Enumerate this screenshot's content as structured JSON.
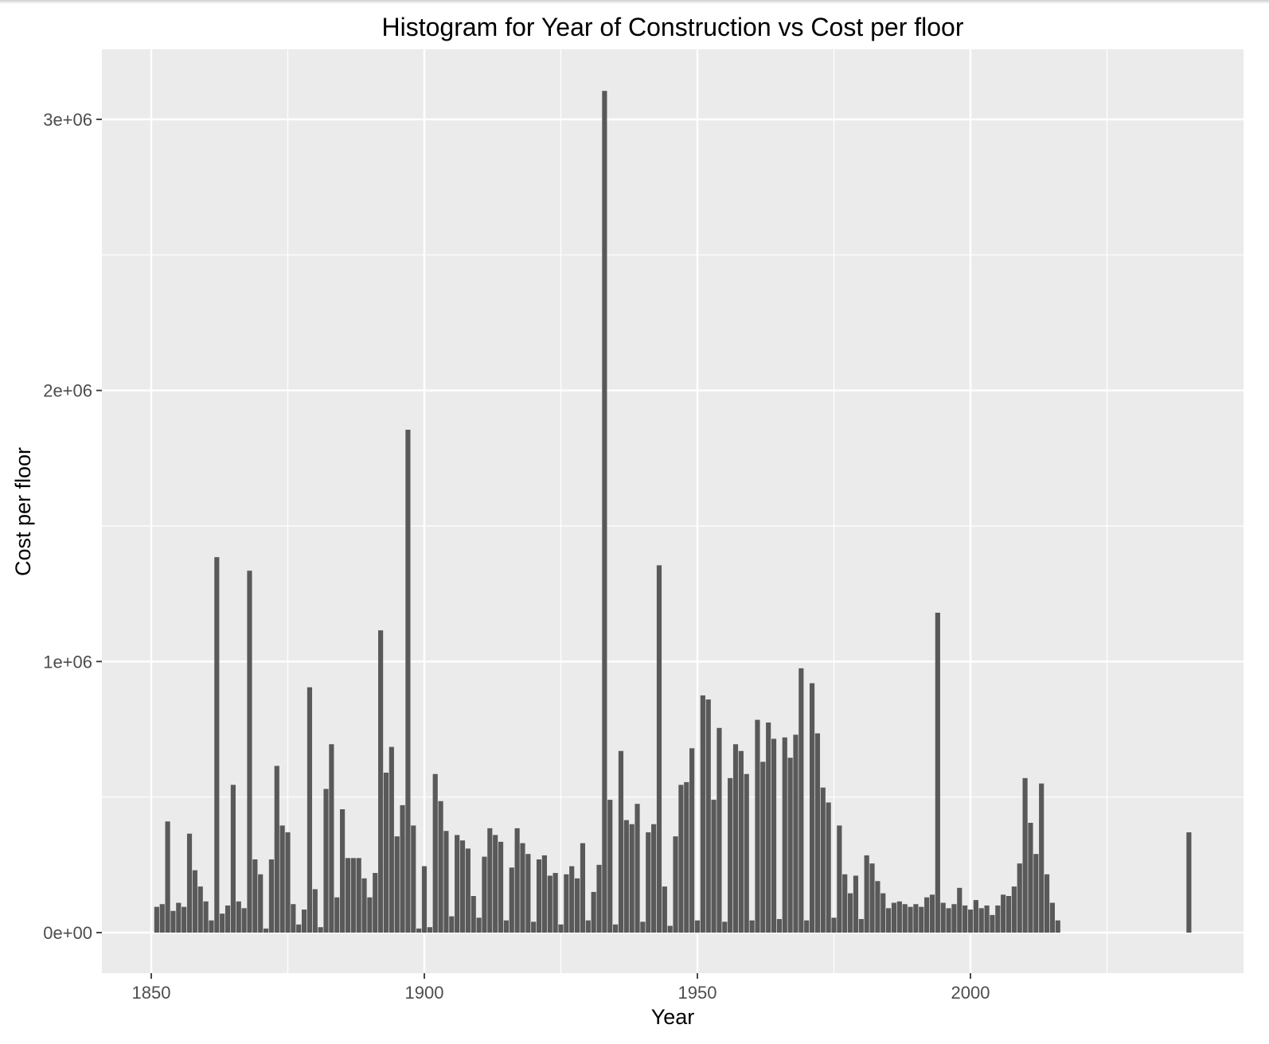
{
  "chart_data": {
    "type": "bar",
    "title": "Histogram for Year of Construction vs Cost per floor",
    "xlabel": "Year",
    "ylabel": "Cost per floor",
    "xlim": [
      1841.5,
      2048.5
    ],
    "ylim": [
      -160000,
      3250000
    ],
    "x_ticks": [
      1850,
      1900,
      1950,
      2000
    ],
    "x_tick_labels": [
      "1850",
      "1900",
      "1950",
      "2000"
    ],
    "y_ticks": [
      0,
      1000000,
      2000000,
      3000000
    ],
    "y_tick_labels": [
      "0e+00",
      "1e+06",
      "2e+06",
      "3e+06"
    ],
    "grid": true,
    "legend": "none",
    "colors": {
      "bar": "#595959",
      "panel": "#ebebeb",
      "grid": "#ffffff",
      "text": "#000000",
      "tick_text": "#4d4d4d"
    },
    "x": [
      1851,
      1852,
      1853,
      1854,
      1855,
      1856,
      1857,
      1858,
      1859,
      1860,
      1861,
      1862,
      1863,
      1864,
      1865,
      1866,
      1867,
      1868,
      1869,
      1870,
      1871,
      1872,
      1873,
      1874,
      1875,
      1876,
      1877,
      1878,
      1879,
      1880,
      1881,
      1882,
      1883,
      1884,
      1885,
      1886,
      1887,
      1888,
      1889,
      1890,
      1891,
      1892,
      1893,
      1894,
      1895,
      1896,
      1897,
      1898,
      1899,
      1900,
      1901,
      1902,
      1903,
      1904,
      1905,
      1906,
      1907,
      1908,
      1909,
      1910,
      1911,
      1912,
      1913,
      1914,
      1915,
      1916,
      1917,
      1918,
      1919,
      1920,
      1921,
      1922,
      1923,
      1924,
      1925,
      1926,
      1927,
      1928,
      1929,
      1930,
      1931,
      1932,
      1933,
      1934,
      1935,
      1936,
      1937,
      1938,
      1939,
      1940,
      1941,
      1942,
      1943,
      1944,
      1945,
      1946,
      1947,
      1948,
      1949,
      1950,
      1951,
      1952,
      1953,
      1954,
      1955,
      1956,
      1957,
      1958,
      1959,
      1960,
      1961,
      1962,
      1963,
      1964,
      1965,
      1966,
      1967,
      1968,
      1969,
      1970,
      1971,
      1972,
      1973,
      1974,
      1975,
      1976,
      1977,
      1978,
      1979,
      1980,
      1981,
      1982,
      1983,
      1984,
      1985,
      1986,
      1987,
      1988,
      1989,
      1990,
      1991,
      1992,
      1993,
      1994,
      1995,
      1996,
      1997,
      1998,
      1999,
      2000,
      2001,
      2002,
      2003,
      2004,
      2005,
      2006,
      2007,
      2008,
      2009,
      2010,
      2011,
      2012,
      2013,
      2014,
      2015,
      2016,
      2040
    ],
    "values": [
      95000,
      105000,
      410000,
      80000,
      110000,
      95000,
      365000,
      230000,
      170000,
      115000,
      45000,
      1385000,
      70000,
      100000,
      545000,
      115000,
      90000,
      1335000,
      270000,
      215000,
      15000,
      270000,
      615000,
      395000,
      370000,
      105000,
      30000,
      85000,
      905000,
      160000,
      20000,
      530000,
      695000,
      130000,
      455000,
      275000,
      275000,
      275000,
      200000,
      130000,
      220000,
      1115000,
      590000,
      685000,
      355000,
      470000,
      1855000,
      395000,
      15000,
      245000,
      20000,
      585000,
      485000,
      375000,
      60000,
      360000,
      340000,
      310000,
      135000,
      55000,
      280000,
      385000,
      360000,
      335000,
      45000,
      240000,
      385000,
      330000,
      290000,
      40000,
      270000,
      285000,
      210000,
      220000,
      30000,
      215000,
      245000,
      200000,
      330000,
      45000,
      150000,
      250000,
      3105000,
      490000,
      30000,
      670000,
      415000,
      400000,
      475000,
      40000,
      370000,
      400000,
      1355000,
      170000,
      25000,
      355000,
      545000,
      555000,
      680000,
      45000,
      875000,
      860000,
      490000,
      755000,
      40000,
      570000,
      695000,
      670000,
      585000,
      45000,
      785000,
      630000,
      775000,
      715000,
      50000,
      720000,
      645000,
      730000,
      975000,
      45000,
      920000,
      735000,
      535000,
      480000,
      55000,
      395000,
      215000,
      145000,
      210000,
      50000,
      285000,
      255000,
      190000,
      145000,
      90000,
      110000,
      115000,
      105000,
      95000,
      105000,
      95000,
      130000,
      140000,
      1180000,
      110000,
      90000,
      105000,
      165000,
      100000,
      85000,
      120000,
      90000,
      100000,
      65000,
      100000,
      140000,
      135000,
      170000,
      255000,
      570000,
      405000,
      290000,
      550000,
      215000,
      110000,
      45000,
      370000
    ]
  }
}
